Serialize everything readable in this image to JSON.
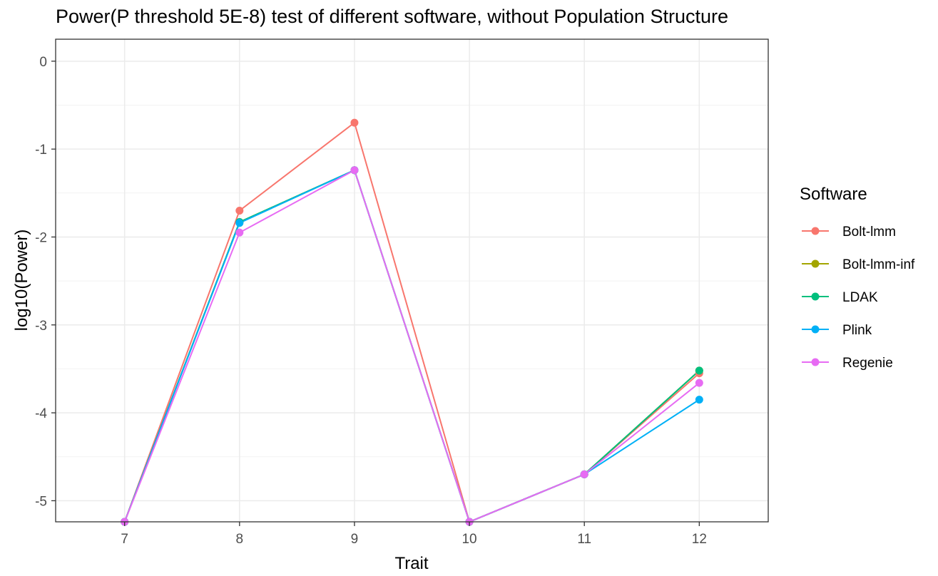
{
  "chart_data": {
    "type": "line",
    "title": "Power(P threshold 5E-8) test of different software, without Population Structure",
    "xlabel": "Trait",
    "ylabel": "log10(Power)",
    "x": [
      7,
      8,
      9,
      10,
      11,
      12
    ],
    "x_tick_labels": [
      "7",
      "8",
      "9",
      "10",
      "11",
      "12"
    ],
    "xlim": [
      6.4,
      12.6
    ],
    "y_ticks": [
      0,
      -1,
      -2,
      -3,
      -4,
      -5
    ],
    "y_tick_labels": [
      "0",
      "-1",
      "-2",
      "-3",
      "-4",
      "-5"
    ],
    "ylim": [
      -5.24,
      0.25
    ],
    "grid": true,
    "legend": {
      "title": "Software",
      "position": "right"
    },
    "series": [
      {
        "name": "Bolt-lmm",
        "color": "#F8766D",
        "values": [
          -5.24,
          -1.7,
          -0.7,
          -5.24,
          -4.7,
          -3.55
        ]
      },
      {
        "name": "Bolt-lmm-inf",
        "color": "#A3A500",
        "values": [
          -5.24,
          -1.83,
          -1.24,
          -5.24,
          -4.7,
          -3.52
        ]
      },
      {
        "name": "LDAK",
        "color": "#00BF7D",
        "values": [
          -5.24,
          -1.83,
          -1.24,
          -5.24,
          -4.7,
          -3.52
        ]
      },
      {
        "name": "Plink",
        "color": "#00B0F6",
        "values": [
          -5.24,
          -1.84,
          -1.24,
          -5.24,
          -4.7,
          -3.85
        ]
      },
      {
        "name": "Regenie",
        "color": "#E76BF3",
        "values": [
          -5.24,
          -1.95,
          -1.24,
          -5.24,
          -4.7,
          -3.66
        ]
      }
    ]
  }
}
